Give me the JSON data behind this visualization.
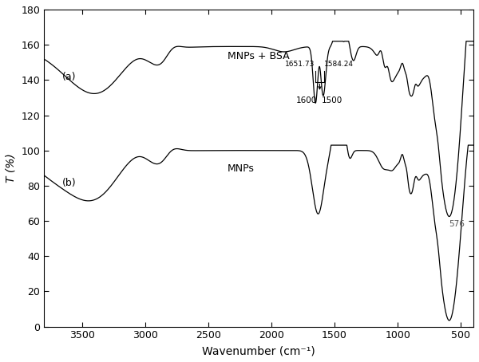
{
  "title": "",
  "xlabel": "Wavenumber (cm⁻¹)",
  "ylabel": "T (%)",
  "xlim": [
    3800,
    400
  ],
  "ylim": [
    0,
    180
  ],
  "yticks": [
    0,
    20,
    40,
    60,
    80,
    100,
    120,
    140,
    160,
    180
  ],
  "xticks": [
    3500,
    3000,
    2500,
    2000,
    1500,
    1000,
    500
  ],
  "background_color": "#ffffff",
  "line_color": "#000000",
  "label_a": "(a)",
  "label_b": "(b)",
  "label_mnps_bsa": "MNPs + BSA",
  "label_mnps": "MNPs",
  "annotation_1651": "1651.73",
  "annotation_1584": "1584.24",
  "annotation_1600": "1600",
  "annotation_1500": "1500",
  "annotation_576": "576"
}
